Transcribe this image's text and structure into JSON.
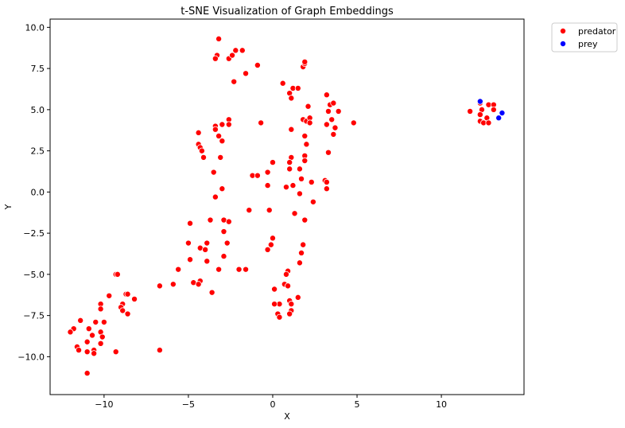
{
  "chart_data": {
    "type": "scatter",
    "title": "t-SNE Visualization of Graph Embeddings",
    "xlabel": "X",
    "ylabel": "Y",
    "xlim": [
      -13.2,
      14.9
    ],
    "ylim": [
      -12.3,
      10.5
    ],
    "xticks": [
      -10,
      -5,
      0,
      5,
      10
    ],
    "yticks": [
      -10.0,
      -7.5,
      -5.0,
      -2.5,
      0.0,
      2.5,
      5.0,
      7.5,
      10.0
    ],
    "xtick_labels": [
      "−10",
      "−5",
      "0",
      "5",
      "10"
    ],
    "ytick_labels": [
      "−10.0",
      "−7.5",
      "−5.0",
      "−2.5",
      "0.0",
      "2.5",
      "5.0",
      "7.5",
      "10.0"
    ],
    "grid": false,
    "legend_position": "outside-top-right",
    "series": [
      {
        "name": "predator",
        "color": "#ff0000",
        "points": [
          [
            -3.2,
            9.3
          ],
          [
            -3.3,
            8.3
          ],
          [
            -3.4,
            8.1
          ],
          [
            -2.6,
            8.1
          ],
          [
            -2.4,
            8.3
          ],
          [
            -2.2,
            8.6
          ],
          [
            -1.8,
            8.6
          ],
          [
            -1.6,
            7.2
          ],
          [
            -2.3,
            6.7
          ],
          [
            -0.9,
            7.7
          ],
          [
            1.8,
            7.6
          ],
          [
            1.9,
            7.8
          ],
          [
            1.9,
            7.9
          ],
          [
            0.6,
            6.6
          ],
          [
            1.2,
            6.3
          ],
          [
            1.5,
            6.3
          ],
          [
            1.0,
            6.0
          ],
          [
            1.1,
            5.7
          ],
          [
            3.2,
            5.9
          ],
          [
            2.1,
            5.2
          ],
          [
            3.4,
            5.3
          ],
          [
            3.6,
            5.4
          ],
          [
            3.3,
            4.9
          ],
          [
            3.9,
            4.9
          ],
          [
            4.8,
            4.2
          ],
          [
            1.8,
            4.4
          ],
          [
            2.0,
            4.3
          ],
          [
            2.2,
            4.5
          ],
          [
            2.2,
            4.2
          ],
          [
            3.2,
            4.1
          ],
          [
            3.5,
            4.4
          ],
          [
            3.7,
            3.9
          ],
          [
            -0.7,
            4.2
          ],
          [
            -2.6,
            4.4
          ],
          [
            -2.6,
            4.1
          ],
          [
            -3.4,
            4.0
          ],
          [
            -3.0,
            4.1
          ],
          [
            -3.4,
            3.8
          ],
          [
            -4.4,
            3.6
          ],
          [
            -3.2,
            3.4
          ],
          [
            -3.0,
            3.1
          ],
          [
            -4.4,
            2.9
          ],
          [
            -4.3,
            2.7
          ],
          [
            -4.2,
            2.5
          ],
          [
            -4.1,
            2.1
          ],
          [
            -3.1,
            2.1
          ],
          [
            -3.5,
            1.2
          ],
          [
            -1.2,
            1.0
          ],
          [
            -0.9,
            1.0
          ],
          [
            -0.3,
            1.2
          ],
          [
            0.0,
            1.8
          ],
          [
            1.1,
            3.8
          ],
          [
            1.9,
            3.4
          ],
          [
            2.0,
            2.9
          ],
          [
            3.3,
            2.4
          ],
          [
            3.6,
            3.5
          ],
          [
            1.9,
            2.2
          ],
          [
            1.9,
            1.9
          ],
          [
            1.1,
            2.1
          ],
          [
            1.0,
            1.8
          ],
          [
            1.6,
            1.4
          ],
          [
            1.0,
            1.4
          ],
          [
            1.7,
            0.8
          ],
          [
            2.3,
            0.6
          ],
          [
            3.1,
            0.7
          ],
          [
            3.2,
            0.6
          ],
          [
            3.2,
            0.2
          ],
          [
            1.2,
            0.4
          ],
          [
            0.8,
            0.3
          ],
          [
            -0.3,
            0.4
          ],
          [
            1.6,
            -0.1
          ],
          [
            2.4,
            -0.6
          ],
          [
            -3.0,
            0.2
          ],
          [
            -3.4,
            -0.3
          ],
          [
            -1.4,
            -1.1
          ],
          [
            -0.2,
            -1.1
          ],
          [
            1.3,
            -1.3
          ],
          [
            1.9,
            -1.7
          ],
          [
            -2.9,
            -1.7
          ],
          [
            -3.7,
            -1.7
          ],
          [
            -4.9,
            -1.9
          ],
          [
            -2.6,
            -1.8
          ],
          [
            -2.9,
            -2.4
          ],
          [
            0.0,
            -2.8
          ],
          [
            -3.9,
            -3.1
          ],
          [
            -5.0,
            -3.1
          ],
          [
            -2.7,
            -3.1
          ],
          [
            -0.1,
            -3.2
          ],
          [
            1.8,
            -3.2
          ],
          [
            -4.3,
            -3.4
          ],
          [
            -4.0,
            -3.5
          ],
          [
            -0.3,
            -3.5
          ],
          [
            1.7,
            -3.7
          ],
          [
            -2.9,
            -3.9
          ],
          [
            -4.9,
            -4.1
          ],
          [
            -3.9,
            -4.2
          ],
          [
            1.6,
            -4.3
          ],
          [
            -5.6,
            -4.7
          ],
          [
            -3.2,
            -4.7
          ],
          [
            -2.0,
            -4.7
          ],
          [
            -1.6,
            -4.7
          ],
          [
            0.9,
            -4.8
          ],
          [
            0.8,
            -5.0
          ],
          [
            -4.3,
            -5.4
          ],
          [
            -4.7,
            -5.5
          ],
          [
            -4.4,
            -5.6
          ],
          [
            -5.9,
            -5.6
          ],
          [
            -6.7,
            -5.7
          ],
          [
            0.7,
            -5.6
          ],
          [
            0.9,
            -5.7
          ],
          [
            0.1,
            -5.9
          ],
          [
            -3.6,
            -6.1
          ],
          [
            1.5,
            -6.4
          ],
          [
            1.0,
            -6.6
          ],
          [
            0.4,
            -6.8
          ],
          [
            0.1,
            -6.8
          ],
          [
            1.1,
            -6.8
          ],
          [
            1.1,
            -7.2
          ],
          [
            0.3,
            -7.4
          ],
          [
            1.0,
            -7.4
          ],
          [
            0.4,
            -7.6
          ],
          [
            -9.3,
            -5.0
          ],
          [
            -9.2,
            -5.0
          ],
          [
            -8.7,
            -6.2
          ],
          [
            -8.6,
            -6.2
          ],
          [
            -9.7,
            -6.3
          ],
          [
            -8.2,
            -6.5
          ],
          [
            -8.9,
            -6.8
          ],
          [
            -10.2,
            -6.8
          ],
          [
            -10.2,
            -7.1
          ],
          [
            -9.0,
            -7.0
          ],
          [
            -8.9,
            -7.2
          ],
          [
            -8.6,
            -7.4
          ],
          [
            -11.4,
            -7.8
          ],
          [
            -10.5,
            -7.9
          ],
          [
            -10.0,
            -7.9
          ],
          [
            -10.9,
            -8.3
          ],
          [
            -11.8,
            -8.3
          ],
          [
            -12.0,
            -8.5
          ],
          [
            -10.2,
            -8.5
          ],
          [
            -10.7,
            -8.7
          ],
          [
            -10.1,
            -8.8
          ],
          [
            -11.0,
            -9.1
          ],
          [
            -10.2,
            -9.2
          ],
          [
            -11.6,
            -9.4
          ],
          [
            -11.5,
            -9.6
          ],
          [
            -10.6,
            -9.6
          ],
          [
            -11.0,
            -9.7
          ],
          [
            -10.6,
            -9.8
          ],
          [
            -9.3,
            -9.7
          ],
          [
            -6.7,
            -9.6
          ],
          [
            -11.0,
            -11.0
          ],
          [
            11.7,
            4.9
          ],
          [
            12.3,
            5.4
          ],
          [
            12.4,
            5.0
          ],
          [
            12.8,
            5.3
          ],
          [
            13.1,
            5.3
          ],
          [
            13.1,
            5.0
          ],
          [
            12.3,
            4.7
          ],
          [
            12.7,
            4.5
          ],
          [
            12.3,
            4.3
          ],
          [
            12.5,
            4.2
          ],
          [
            12.8,
            4.2
          ]
        ]
      },
      {
        "name": "prey",
        "color": "#0000ff",
        "points": [
          [
            12.3,
            5.5
          ],
          [
            13.6,
            4.8
          ],
          [
            13.4,
            4.5
          ]
        ]
      }
    ]
  }
}
